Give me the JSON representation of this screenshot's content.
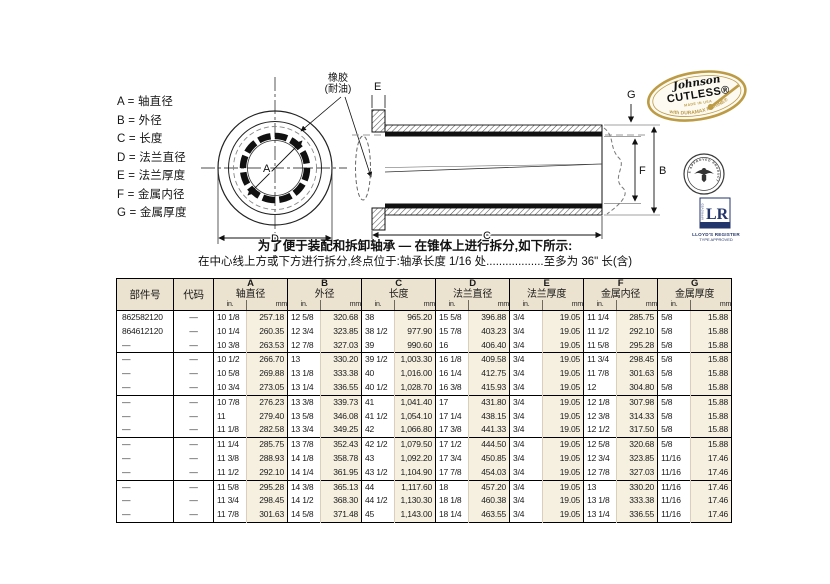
{
  "legend": {
    "items": [
      "A = 轴直径",
      "B = 外径",
      "C = 长度",
      "D = 法兰直径",
      "E = 法兰厚度",
      "F = 金属内径",
      "G = 金属厚度"
    ]
  },
  "diagram": {
    "rubber_label_line1": "橡胶",
    "rubber_label_line2": "(耐油)",
    "dim_a": "A",
    "dim_b": "B",
    "dim_c": "C",
    "dim_d": "D",
    "dim_e": "E",
    "dim_f": "F",
    "dim_g": "G"
  },
  "logos": {
    "johnson": {
      "name_script": "Johnson",
      "name_bold": "CUTLESS®",
      "made_in": "MADE IN USA",
      "tagline": "with DURAMAX MARINE®"
    },
    "abs_seal": {
      "ring_text": "TYPE APPROVED PRODUCT"
    },
    "lloyds": {
      "monogram": "LR",
      "side_text": "APPROVED",
      "line1": "LLOYD'S REGISTER",
      "line2": "TYPE APPROVED"
    }
  },
  "note": {
    "line1": "为了便于装配和拆卸轴承 — 在锥体上进行拆分,如下所示:",
    "line2": "在中心线上方或下方进行拆分,终点位于:轴承长度 1/16 处..................至多为 36\" 长(含)"
  },
  "table": {
    "col_part": "部件号",
    "col_code": "代码",
    "unit_in": "in.",
    "unit_mm": "mm",
    "dims": [
      {
        "letter": "A",
        "name": "轴直径"
      },
      {
        "letter": "B",
        "name": "外径"
      },
      {
        "letter": "C",
        "name": "长度"
      },
      {
        "letter": "D",
        "name": "法兰直径"
      },
      {
        "letter": "E",
        "name": "法兰厚度"
      },
      {
        "letter": "F",
        "name": "金属内径"
      },
      {
        "letter": "G",
        "name": "金属厚度"
      }
    ],
    "groups": [
      [
        [
          "862582120",
          "—",
          "10 1/8",
          "257.18",
          "12 5/8",
          "320.68",
          "38",
          "965.20",
          "15 5/8",
          "396.88",
          "3/4",
          "19.05",
          "11 1/4",
          "285.75",
          "5/8",
          "15.88"
        ],
        [
          "864612120",
          "—",
          "10 1/4",
          "260.35",
          "12 3/4",
          "323.85",
          "38 1/2",
          "977.90",
          "15 7/8",
          "403.23",
          "3/4",
          "19.05",
          "11 1/2",
          "292.10",
          "5/8",
          "15.88"
        ],
        [
          "—",
          "—",
          "10 3/8",
          "263.53",
          "12 7/8",
          "327.03",
          "39",
          "990.60",
          "16",
          "406.40",
          "3/4",
          "19.05",
          "11 5/8",
          "295.28",
          "5/8",
          "15.88"
        ]
      ],
      [
        [
          "—",
          "—",
          "10 1/2",
          "266.70",
          "13",
          "330.20",
          "39 1/2",
          "1,003.30",
          "16 1/8",
          "409.58",
          "3/4",
          "19.05",
          "11 3/4",
          "298.45",
          "5/8",
          "15.88"
        ],
        [
          "—",
          "—",
          "10 5/8",
          "269.88",
          "13 1/8",
          "333.38",
          "40",
          "1,016.00",
          "16 1/4",
          "412.75",
          "3/4",
          "19.05",
          "11 7/8",
          "301.63",
          "5/8",
          "15.88"
        ],
        [
          "—",
          "—",
          "10 3/4",
          "273.05",
          "13 1/4",
          "336.55",
          "40 1/2",
          "1,028.70",
          "16 3/8",
          "415.93",
          "3/4",
          "19.05",
          "12",
          "304.80",
          "5/8",
          "15.88"
        ]
      ],
      [
        [
          "—",
          "—",
          "10 7/8",
          "276.23",
          "13 3/8",
          "339.73",
          "41",
          "1,041.40",
          "17",
          "431.80",
          "3/4",
          "19.05",
          "12 1/8",
          "307.98",
          "5/8",
          "15.88"
        ],
        [
          "—",
          "—",
          "11",
          "279.40",
          "13 5/8",
          "346.08",
          "41 1/2",
          "1,054.10",
          "17 1/4",
          "438.15",
          "3/4",
          "19.05",
          "12 3/8",
          "314.33",
          "5/8",
          "15.88"
        ],
        [
          "—",
          "—",
          "11 1/8",
          "282.58",
          "13 3/4",
          "349.25",
          "42",
          "1,066.80",
          "17 3/8",
          "441.33",
          "3/4",
          "19.05",
          "12 1/2",
          "317.50",
          "5/8",
          "15.88"
        ]
      ],
      [
        [
          "—",
          "—",
          "11 1/4",
          "285.75",
          "13 7/8",
          "352.43",
          "42 1/2",
          "1,079.50",
          "17 1/2",
          "444.50",
          "3/4",
          "19.05",
          "12 5/8",
          "320.68",
          "5/8",
          "15.88"
        ],
        [
          "—",
          "—",
          "11 3/8",
          "288.93",
          "14 1/8",
          "358.78",
          "43",
          "1,092.20",
          "17 3/4",
          "450.85",
          "3/4",
          "19.05",
          "12 3/4",
          "323.85",
          "11/16",
          "17.46"
        ],
        [
          "—",
          "—",
          "11 1/2",
          "292.10",
          "14 1/4",
          "361.95",
          "43 1/2",
          "1,104.90",
          "17 7/8",
          "454.03",
          "3/4",
          "19.05",
          "12 7/8",
          "327.03",
          "11/16",
          "17.46"
        ]
      ],
      [
        [
          "—",
          "—",
          "11 5/8",
          "295.28",
          "14 3/8",
          "365.13",
          "44",
          "1,117.60",
          "18",
          "457.20",
          "3/4",
          "19.05",
          "13",
          "330.20",
          "11/16",
          "17.46"
        ],
        [
          "—",
          "—",
          "11 3/4",
          "298.45",
          "14 1/2",
          "368.30",
          "44 1/2",
          "1,130.30",
          "18 1/8",
          "460.38",
          "3/4",
          "19.05",
          "13 1/8",
          "333.38",
          "11/16",
          "17.46"
        ],
        [
          "—",
          "—",
          "11 7/8",
          "301.63",
          "14 5/8",
          "371.48",
          "45",
          "1,143.00",
          "18 1/4",
          "463.55",
          "3/4",
          "19.05",
          "13 1/4",
          "336.55",
          "11/16",
          "17.46"
        ]
      ]
    ]
  }
}
